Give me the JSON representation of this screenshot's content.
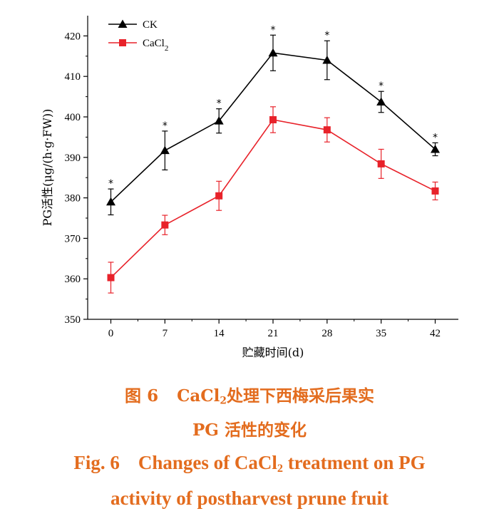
{
  "chart_data": {
    "type": "line",
    "xlabel": "贮藏时间(d)",
    "ylabel": "PG活性(μg/(h·g·FW))",
    "x": [
      0,
      7,
      14,
      21,
      28,
      35,
      42
    ],
    "xlim": [
      -3,
      45
    ],
    "ylim": [
      350,
      425
    ],
    "yticks": [
      350,
      360,
      370,
      380,
      390,
      400,
      410,
      420
    ],
    "series": [
      {
        "name": "CK",
        "color": "#000000",
        "marker": "triangle",
        "values": [
          379,
          391.7,
          399,
          415.8,
          414,
          403.7,
          392
        ],
        "errors": [
          3.2,
          4.8,
          3.0,
          4.4,
          4.8,
          2.6,
          1.6
        ],
        "annotations": [
          "*",
          "*",
          "*",
          "*",
          "*",
          "*",
          "*"
        ]
      },
      {
        "name_main": "CaCl",
        "name_sub": "2",
        "color": "#e8222a",
        "marker": "square",
        "values": [
          360.3,
          373.3,
          380.5,
          399.3,
          396.8,
          388.4,
          381.7
        ],
        "errors": [
          3.8,
          2.4,
          3.6,
          3.2,
          3.0,
          3.6,
          2.2
        ]
      }
    ],
    "legend_position": "top-left",
    "grid": false
  },
  "caption": {
    "cn_line1_a": "图",
    "cn_line1_num": "6",
    "cn_line1_b": "CaCl",
    "cn_line1_sub": "2",
    "cn_line1_c": "处理下西梅采后果实",
    "cn_line2": "PG 活性的变化",
    "en_line1_a": "Fig. 6",
    "en_line1_b": "Changes of CaCl",
    "en_line1_sub": "2",
    "en_line1_c": " treatment on PG",
    "en_line2": "activity of postharvest prune fruit"
  }
}
